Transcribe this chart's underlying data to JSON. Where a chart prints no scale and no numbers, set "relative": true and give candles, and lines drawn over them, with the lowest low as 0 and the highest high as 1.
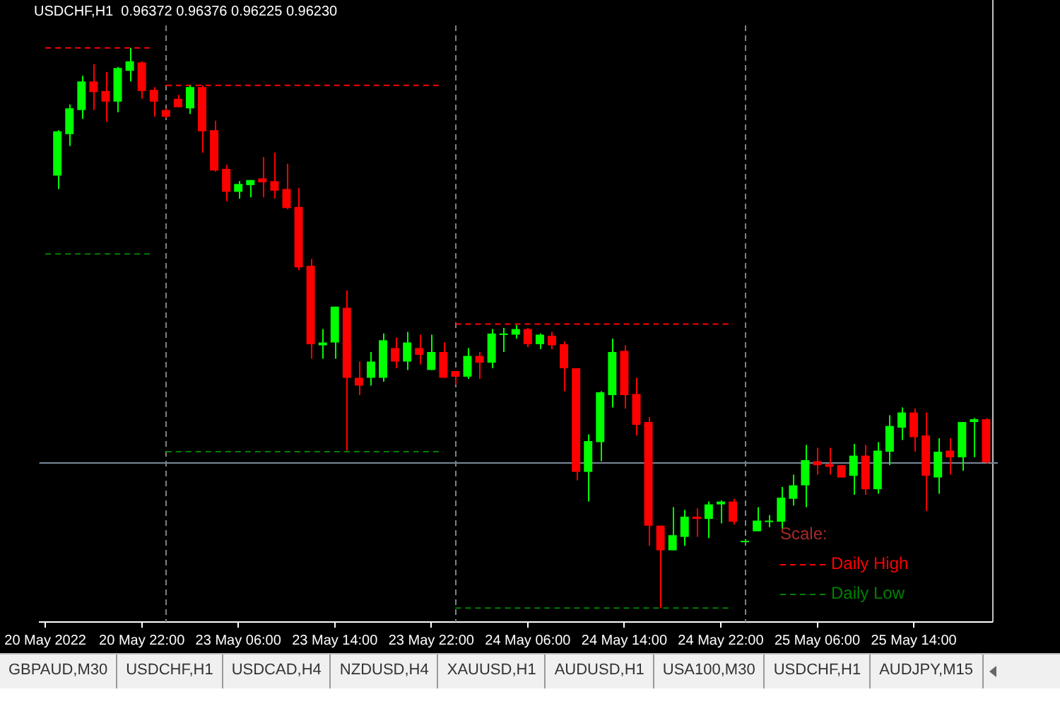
{
  "chart_data": {
    "type": "candlestick",
    "title": "USDCHF,H1  0.96372 0.96376 0.96225 0.96230",
    "relative": true,
    "categories": [
      "20 May 2022",
      null,
      null,
      null,
      null,
      null,
      null,
      null,
      "20 May 22:00",
      null,
      null,
      null,
      null,
      null,
      null,
      null,
      "23 May 06:00",
      null,
      null,
      null,
      null,
      null,
      null,
      null,
      "23 May 14:00",
      null,
      null,
      null,
      null,
      null,
      null,
      null,
      "23 May 22:00",
      null,
      null,
      null,
      null,
      null,
      null,
      null,
      "24 May 06:00",
      null,
      null,
      null,
      null,
      null,
      null,
      null,
      "24 May 14:00",
      null,
      null,
      null,
      null,
      null,
      null,
      null,
      "24 May 22:00",
      null,
      null,
      null,
      null,
      null,
      null,
      null,
      "25 May 06:00",
      null,
      null,
      null,
      null,
      null,
      null,
      null,
      "25 May 14:00",
      null,
      null,
      null,
      null,
      null,
      null
    ],
    "ohlc": [
      null,
      [
        0.772,
        0.853,
        0.748,
        0.851
      ],
      [
        0.846,
        0.899,
        0.825,
        0.892
      ],
      [
        0.889,
        0.95,
        0.873,
        0.94
      ],
      [
        0.94,
        0.971,
        0.889,
        0.921
      ],
      [
        0.923,
        0.957,
        0.868,
        0.904
      ],
      [
        0.904,
        0.966,
        0.885,
        0.964
      ],
      [
        0.959,
        1,
        0.94,
        0.976
      ],
      [
        0.974,
        0.976,
        0.909,
        0.923
      ],
      [
        0.925,
        0.93,
        0.877,
        0.904
      ],
      [
        0.889,
        0.892,
        0.875,
        0.877
      ],
      [
        0.909,
        0.916,
        0.894,
        0.894
      ],
      [
        0.892,
        0.933,
        0.882,
        0.93
      ],
      [
        0.93,
        0.933,
        0.813,
        0.851
      ],
      [
        0.853,
        0.87,
        0.779,
        0.781
      ],
      [
        0.784,
        0.791,
        0.726,
        0.743
      ],
      [
        0.743,
        0.762,
        0.731,
        0.757
      ],
      [
        0.755,
        0.764,
        0.733,
        0.764
      ],
      [
        0.767,
        0.805,
        0.733,
        0.76
      ],
      [
        0.762,
        0.813,
        0.731,
        0.745
      ],
      [
        0.748,
        0.793,
        0.712,
        0.714
      ],
      [
        0.716,
        0.75,
        0.603,
        0.608
      ],
      [
        0.611,
        0.623,
        0.445,
        0.471
      ],
      [
        0.469,
        0.498,
        0.445,
        0.474
      ],
      [
        0.474,
        0.538,
        0.445,
        0.538
      ],
      [
        0.536,
        0.567,
        0.281,
        0.411
      ],
      [
        0.411,
        0.44,
        0.38,
        0.397
      ],
      [
        0.411,
        0.457,
        0.397,
        0.44
      ],
      [
        0.411,
        0.49,
        0.404,
        0.478
      ],
      [
        0.464,
        0.483,
        0.428,
        0.44
      ],
      [
        0.44,
        0.493,
        0.425,
        0.474
      ],
      [
        0.464,
        0.488,
        0.435,
        0.452
      ],
      [
        0.425,
        0.488,
        0.425,
        0.457
      ],
      [
        0.457,
        0.474,
        0.411,
        0.411
      ],
      [
        0.423,
        0.423,
        0.399,
        0.413
      ],
      [
        0.413,
        0.464,
        0.409,
        0.45
      ],
      [
        0.45,
        0.457,
        0.409,
        0.438
      ],
      [
        0.438,
        0.498,
        0.428,
        0.49
      ],
      [
        0.488,
        0.5,
        0.457,
        0.49
      ],
      [
        0.488,
        0.505,
        0.481,
        0.498
      ],
      [
        0.498,
        0.5,
        0.466,
        0.471
      ],
      [
        0.471,
        0.49,
        0.462,
        0.488
      ],
      [
        0.486,
        0.493,
        0.462,
        0.469
      ],
      [
        0.471,
        0.476,
        0.387,
        0.428
      ],
      [
        0.428,
        0.428,
        0.228,
        0.243
      ],
      [
        0.243,
        0.31,
        0.19,
        0.298
      ],
      [
        0.296,
        0.387,
        0.262,
        0.385
      ],
      [
        0.38,
        0.481,
        0.358,
        0.457
      ],
      [
        0.459,
        0.469,
        0.356,
        0.38
      ],
      [
        0.382,
        0.411,
        0.308,
        0.327
      ],
      [
        0.332,
        0.341,
        0.111,
        0.147
      ],
      [
        0.147,
        0.147,
        0,
        0.103
      ],
      [
        0.103,
        0.18,
        0.103,
        0.13
      ],
      [
        0.127,
        0.175,
        0.111,
        0.163
      ],
      [
        0.163,
        0.178,
        0.127,
        0.159
      ],
      [
        0.159,
        0.19,
        0.125,
        0.185
      ],
      [
        0.185,
        0.192,
        0.151,
        0.19
      ],
      [
        0.19,
        0.195,
        0.149,
        0.154
      ],
      [
        0.118,
        0.123,
        0.118,
        0.12
      ],
      [
        0.137,
        0.18,
        0.137,
        0.156
      ],
      [
        0.154,
        0.166,
        0.144,
        0.156
      ],
      [
        0.154,
        0.216,
        0.142,
        0.197
      ],
      [
        0.195,
        0.238,
        0.183,
        0.219
      ],
      [
        0.219,
        0.291,
        0.18,
        0.264
      ],
      [
        0.262,
        0.286,
        0.238,
        0.255
      ],
      [
        0.257,
        0.286,
        0.238,
        0.252
      ],
      [
        0.255,
        0.255,
        0.233,
        0.233
      ],
      [
        0.236,
        0.293,
        0.202,
        0.272
      ],
      [
        0.272,
        0.291,
        0.202,
        0.212
      ],
      [
        0.212,
        0.296,
        0.204,
        0.281
      ],
      [
        0.279,
        0.344,
        0.255,
        0.325
      ],
      [
        0.322,
        0.358,
        0.3,
        0.349
      ],
      [
        0.349,
        0.356,
        0.279,
        0.305
      ],
      [
        0.308,
        0.349,
        0.173,
        0.236
      ],
      [
        0.233,
        0.303,
        0.204,
        0.279
      ],
      [
        0.281,
        0.303,
        0.238,
        0.269
      ],
      [
        0.269,
        0.332,
        0.245,
        0.332
      ],
      [
        0.332,
        0.339,
        0.269,
        0.337
      ],
      [
        0.337,
        0.339,
        0.257,
        0.26
      ]
    ],
    "colors": [
      null,
      "#00ff00",
      "#00ff00",
      "#00ff00",
      "#ff0000",
      "#ff0000",
      "#00ff00",
      "#00ff00",
      "#ff0000",
      "#ff0000",
      "#ff0000",
      "#ff0000",
      "#00ff00",
      "#ff0000",
      "#ff0000",
      "#ff0000",
      "#00ff00",
      "#00ff00",
      "#ff0000",
      "#ff0000",
      "#ff0000",
      "#ff0000",
      "#ff0000",
      "#00ff00",
      "#00ff00",
      "#ff0000",
      "#ff0000",
      "#00ff00",
      "#00ff00",
      "#ff0000",
      "#00ff00",
      "#ff0000",
      "#00ff00",
      "#ff0000",
      "#ff0000",
      "#00ff00",
      "#ff0000",
      "#00ff00",
      "#00ff00",
      "#00ff00",
      "#ff0000",
      "#00ff00",
      "#ff0000",
      "#ff0000",
      "#ff0000",
      "#00ff00",
      "#00ff00",
      "#00ff00",
      "#ff0000",
      "#ff0000",
      "#ff0000",
      "#ff0000",
      "#00ff00",
      "#00ff00",
      "#ff0000",
      "#00ff00",
      "#00ff00",
      "#ff0000",
      "#00ff00",
      "#00ff00",
      "#00ff00",
      "#00ff00",
      "#00ff00",
      "#00ff00",
      "#ff0000",
      "#ff0000",
      "#ff0000",
      "#00ff00",
      "#ff0000",
      "#00ff00",
      "#00ff00",
      "#00ff00",
      "#ff0000",
      "#ff0000",
      "#00ff00",
      "#ff0000",
      "#00ff00",
      "#00ff00",
      "#ff0000"
    ],
    "series": [
      {
        "type": "line",
        "name": "Daily High",
        "color": "#ff0000",
        "line_style": "dashed",
        "values": [
          1,
          1,
          1,
          1,
          1,
          1,
          1,
          1,
          1,
          1,
          0.933,
          0.933,
          0.933,
          0.933,
          0.933,
          0.933,
          0.933,
          0.933,
          0.933,
          0.933,
          0.933,
          0.933,
          0.933,
          0.933,
          0.933,
          0.933,
          0.933,
          0.933,
          0.933,
          0.933,
          0.933,
          0.933,
          0.933,
          0.933,
          0.507,
          0.507,
          0.507,
          0.507,
          0.507,
          0.507,
          0.507,
          0.507,
          0.507,
          0.507,
          0.507,
          0.507,
          0.507,
          0.507,
          0.507,
          0.507,
          0.507,
          0.507,
          0.507,
          0.507,
          0.507,
          0.507,
          0.507,
          0.507,
          null,
          null,
          null,
          null,
          null,
          null,
          null,
          null,
          null,
          null,
          null,
          null,
          null,
          null,
          null,
          null,
          null,
          null,
          null,
          null,
          null
        ]
      },
      {
        "type": "line",
        "name": "Daily Low",
        "color": "#008000",
        "line_style": "dashed",
        "values": [
          0.632,
          0.632,
          0.632,
          0.632,
          0.632,
          0.632,
          0.632,
          0.632,
          0.632,
          0.632,
          0.279,
          0.279,
          0.279,
          0.279,
          0.279,
          0.279,
          0.279,
          0.279,
          0.279,
          0.279,
          0.279,
          0.279,
          0.279,
          0.279,
          0.279,
          0.279,
          0.279,
          0.279,
          0.279,
          0.279,
          0.279,
          0.279,
          0.279,
          0.279,
          0,
          0,
          0,
          0,
          0,
          0,
          0,
          0,
          0,
          0,
          0,
          0,
          0,
          0,
          0,
          0,
          0,
          0,
          0,
          0,
          0,
          0,
          0,
          0,
          null,
          null,
          null,
          null,
          null,
          null,
          null,
          null,
          null,
          null,
          null,
          null,
          null,
          null,
          null,
          null,
          null,
          null,
          null,
          null,
          null
        ]
      }
    ],
    "marker": "none",
    "grid": "x",
    "legend": "bottom right",
    "legend_title": "Scale:",
    "ref_lines": [
      {
        "axis": "y",
        "value": 0.26,
        "color": "#778899",
        "line_style": "solid"
      }
    ],
    "annotations": [
      "GBPAUD,M30",
      "USDCHF,H1",
      "USDCAD,H4",
      "NZDUSD,H4",
      "XAUUSD,H1",
      "AUDUSD,H1",
      "USA100,M30",
      "USDCHF,H1",
      "AUDJPY,M15"
    ]
  }
}
